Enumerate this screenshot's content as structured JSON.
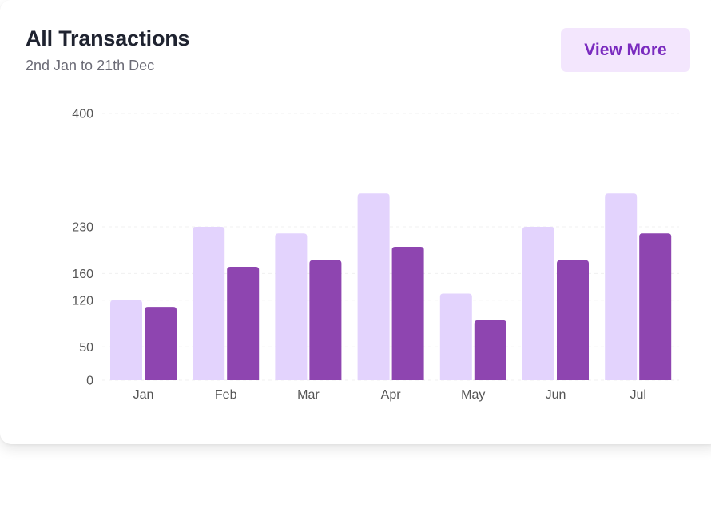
{
  "header": {
    "title": "All Transactions",
    "subtitle": "2nd Jan to 21th Dec",
    "view_more_label": "View More"
  },
  "colors": {
    "series_light": "#e3d3fd",
    "series_dark": "#8e45b0",
    "grid": "#f0f0f0",
    "button_bg": "#f3e6fd",
    "button_text": "#7a2bbf"
  },
  "chart_data": {
    "type": "bar",
    "categories": [
      "Jan",
      "Feb",
      "Mar",
      "Apr",
      "May",
      "Jun",
      "Jul"
    ],
    "series": [
      {
        "values": [
          120,
          230,
          220,
          280,
          130,
          230,
          280
        ]
      },
      {
        "values": [
          110,
          170,
          180,
          200,
          90,
          180,
          220
        ]
      }
    ],
    "yticks": [
      0,
      50,
      120,
      160,
      230,
      400
    ],
    "ylim": [
      0,
      400
    ],
    "grid": true,
    "legend": "none"
  }
}
